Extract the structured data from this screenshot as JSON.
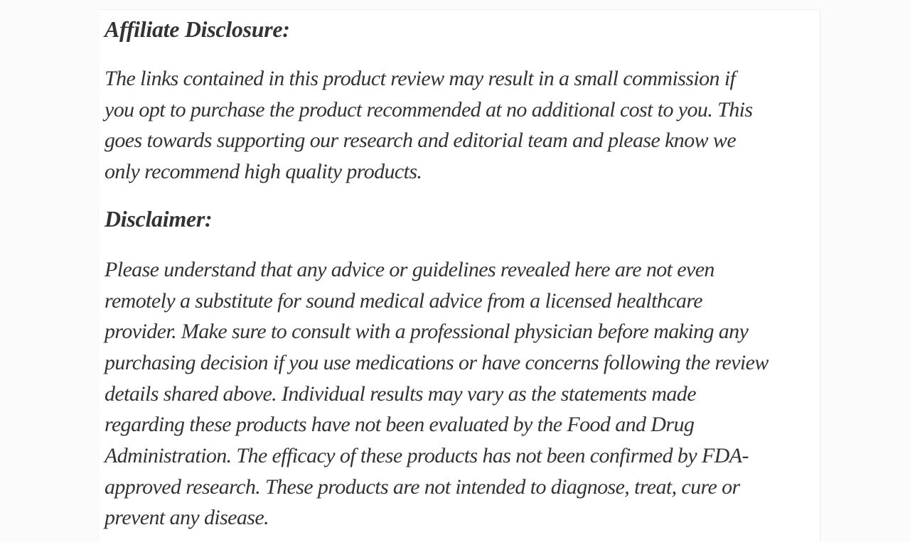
{
  "page": {
    "background_color": "#fbfbfb",
    "card_background_color": "#ffffff",
    "text_color": "#333333"
  },
  "article": {
    "affiliate_heading": "Affiliate Disclosure:",
    "affiliate_paragraph_lines": [
      "The links contained in this product review may result in a small commission if",
      "you opt to purchase the product recommended at no additional cost to you. This",
      "goes towards supporting our research and editorial team and please know we",
      "only recommend high quality products."
    ],
    "disclaimer_heading": "Disclaimer:",
    "disclaimer_paragraph_lines": [
      "Please understand that any advice or guidelines revealed here are not even",
      "remotely a substitute for sound medical advice from a licensed healthcare",
      "provider. Make sure to consult with a professional physician before making any",
      "purchasing decision if you use medications or have concerns following the review",
      "details shared above. Individual results may vary as the statements made",
      "regarding these products have not been evaluated by the Food and Drug",
      "Administration. The efficacy of these products has not been confirmed by FDA-",
      "approved research. These products are not intended to diagnose, treat, cure or",
      "prevent any disease."
    ]
  }
}
